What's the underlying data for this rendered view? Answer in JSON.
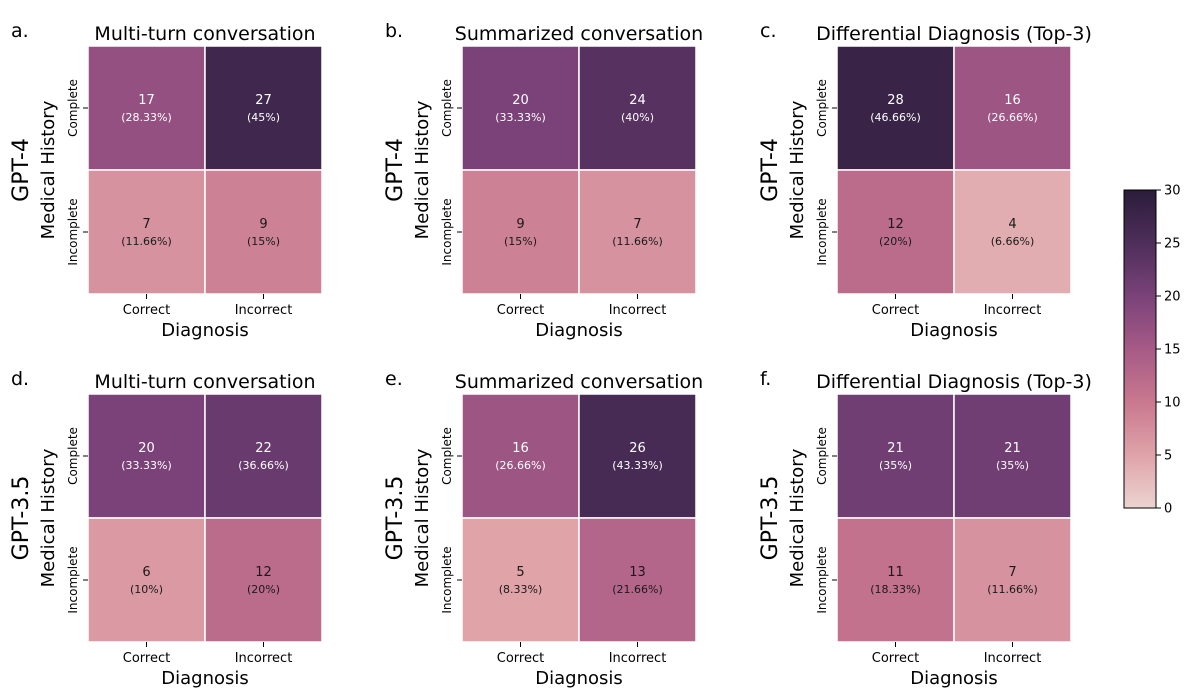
{
  "chart_data": [
    {
      "type": "heatmap",
      "panel_label": "a.",
      "title": "Multi-turn conversation",
      "model_label": "GPT-4",
      "ylabel": "Medical History",
      "xlabel": "Diagnosis",
      "row_labels": [
        "Complete",
        "Incomplete"
      ],
      "col_labels": [
        "Correct",
        "Incorrect"
      ],
      "values": [
        [
          17,
          27
        ],
        [
          7,
          9
        ]
      ],
      "percents": [
        [
          "(28.33%)",
          "(45%)"
        ],
        [
          "(11.66%)",
          "(15%)"
        ]
      ]
    },
    {
      "type": "heatmap",
      "panel_label": "b.",
      "title": "Summarized conversation",
      "model_label": "GPT-4",
      "ylabel": "Medical History",
      "xlabel": "Diagnosis",
      "row_labels": [
        "Complete",
        "Incomplete"
      ],
      "col_labels": [
        "Correct",
        "Incorrect"
      ],
      "values": [
        [
          20,
          24
        ],
        [
          9,
          7
        ]
      ],
      "percents": [
        [
          "(33.33%)",
          "(40%)"
        ],
        [
          "(15%)",
          "(11.66%)"
        ]
      ]
    },
    {
      "type": "heatmap",
      "panel_label": "c.",
      "title": "Differential Diagnosis (Top-3)",
      "model_label": "GPT-4",
      "ylabel": "Medical History",
      "xlabel": "Diagnosis",
      "row_labels": [
        "Complete",
        "Incomplete"
      ],
      "col_labels": [
        "Correct",
        "Incorrect"
      ],
      "values": [
        [
          28,
          16
        ],
        [
          12,
          4
        ]
      ],
      "percents": [
        [
          "(46.66%)",
          "(26.66%)"
        ],
        [
          "(20%)",
          "(6.66%)"
        ]
      ]
    },
    {
      "type": "heatmap",
      "panel_label": "d.",
      "title": "Multi-turn conversation",
      "model_label": "GPT-3.5",
      "ylabel": "Medical History",
      "xlabel": "Diagnosis",
      "row_labels": [
        "Complete",
        "Incomplete"
      ],
      "col_labels": [
        "Correct",
        "Incorrect"
      ],
      "values": [
        [
          20,
          22
        ],
        [
          6,
          12
        ]
      ],
      "percents": [
        [
          "(33.33%)",
          "(36.66%)"
        ],
        [
          "(10%)",
          "(20%)"
        ]
      ]
    },
    {
      "type": "heatmap",
      "panel_label": "e.",
      "title": "Summarized conversation",
      "model_label": "GPT-3.5",
      "ylabel": "Medical History",
      "xlabel": "Diagnosis",
      "row_labels": [
        "Complete",
        "Incomplete"
      ],
      "col_labels": [
        "Correct",
        "Incorrect"
      ],
      "values": [
        [
          16,
          26
        ],
        [
          5,
          13
        ]
      ],
      "percents": [
        [
          "(26.66%)",
          "(43.33%)"
        ],
        [
          "(8.33%)",
          "(21.66%)"
        ]
      ]
    },
    {
      "type": "heatmap",
      "panel_label": "f.",
      "title": "Differential Diagnosis (Top-3)",
      "model_label": "GPT-3.5",
      "ylabel": "Medical History",
      "xlabel": "Diagnosis",
      "row_labels": [
        "Complete",
        "Incomplete"
      ],
      "col_labels": [
        "Correct",
        "Incorrect"
      ],
      "values": [
        [
          21,
          21
        ],
        [
          11,
          7
        ]
      ],
      "percents": [
        [
          "(35%)",
          "(35%)"
        ],
        [
          "(18.33%)",
          "(11.66%)"
        ]
      ]
    }
  ],
  "colorbar": {
    "range": [
      0,
      30
    ],
    "ticks": [
      "0",
      "5",
      "10",
      "15",
      "20",
      "25",
      "30"
    ],
    "palette": [
      "#ecd4d1",
      "#dfa3a8",
      "#c9788f",
      "#a65a86",
      "#7a4279",
      "#4e2e5a",
      "#2b1d3a"
    ],
    "light_text_threshold": 15
  }
}
